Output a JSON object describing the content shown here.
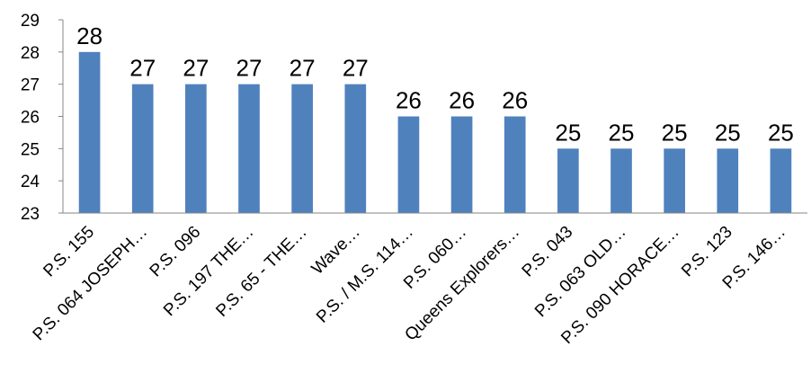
{
  "chart_data": {
    "type": "bar",
    "title": "",
    "xlabel": "",
    "ylabel": "",
    "categories": [
      "P.S. 155",
      "P.S. 064 JOSEPH…",
      "P.S. 096",
      "P.S. 197 THE…",
      "P.S. 65 - THE…",
      "Wave…",
      "P.S. / M.S. 114…",
      "P.S. 060…",
      "Queens Explorers…",
      "P.S. 043",
      "P.S. 063 OLD…",
      "P.S. 090 HORACE…",
      "P.S. 123",
      "P.S. 146…"
    ],
    "values": [
      28,
      27,
      27,
      27,
      27,
      27,
      26,
      26,
      26,
      25,
      25,
      25,
      25,
      25
    ],
    "ylim": [
      23,
      29
    ],
    "yticks": [
      23,
      24,
      25,
      26,
      27,
      28,
      29
    ],
    "grid": false,
    "legend": "none",
    "colors": {
      "bar": "#4f81bd",
      "axis": "#868686"
    }
  }
}
